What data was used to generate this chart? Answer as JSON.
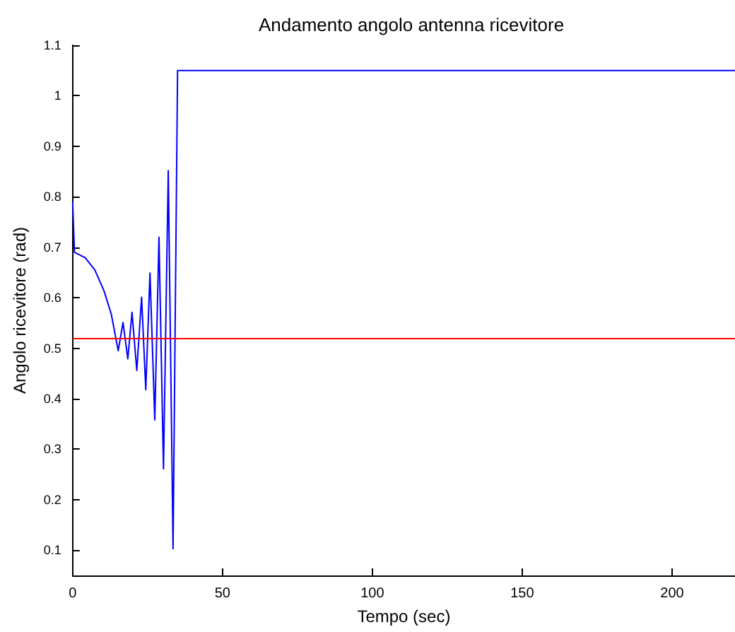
{
  "chart_data": {
    "type": "line",
    "title": "Andamento angolo antenna ricevitore",
    "xlabel": "Tempo (sec)",
    "ylabel": "Angolo ricevitore (rad)",
    "series": [
      {
        "color": "#0000ff",
        "x": [
          0,
          0.6,
          4.2,
          7.4,
          10.5,
          12.9,
          15.2,
          16.8,
          18.4,
          19.8,
          21.4,
          23.0,
          24.4,
          25.8,
          27.4,
          28.8,
          30.3,
          31.9,
          33.5,
          35.0,
          221
        ],
        "values": [
          0.79,
          0.69,
          0.679,
          0.655,
          0.613,
          0.567,
          0.495,
          0.551,
          0.479,
          0.571,
          0.456,
          0.601,
          0.418,
          0.649,
          0.358,
          0.72,
          0.261,
          0.852,
          0.103,
          1.05,
          1.05
        ]
      }
    ],
    "ref_lines": [
      {
        "axis": "y",
        "value": 0.523,
        "color": "#ff0000"
      }
    ],
    "xlim": [
      0,
      221
    ],
    "xticks": [
      0,
      50,
      100,
      150,
      200
    ],
    "ylim": [
      0.05,
      1.1
    ],
    "yticks": [
      0.1,
      0.2,
      0.3,
      0.4,
      0.5,
      0.6,
      0.7,
      0.8,
      0.9,
      1,
      1.1
    ],
    "grid": false,
    "marker": "none",
    "line_style": "solid"
  }
}
